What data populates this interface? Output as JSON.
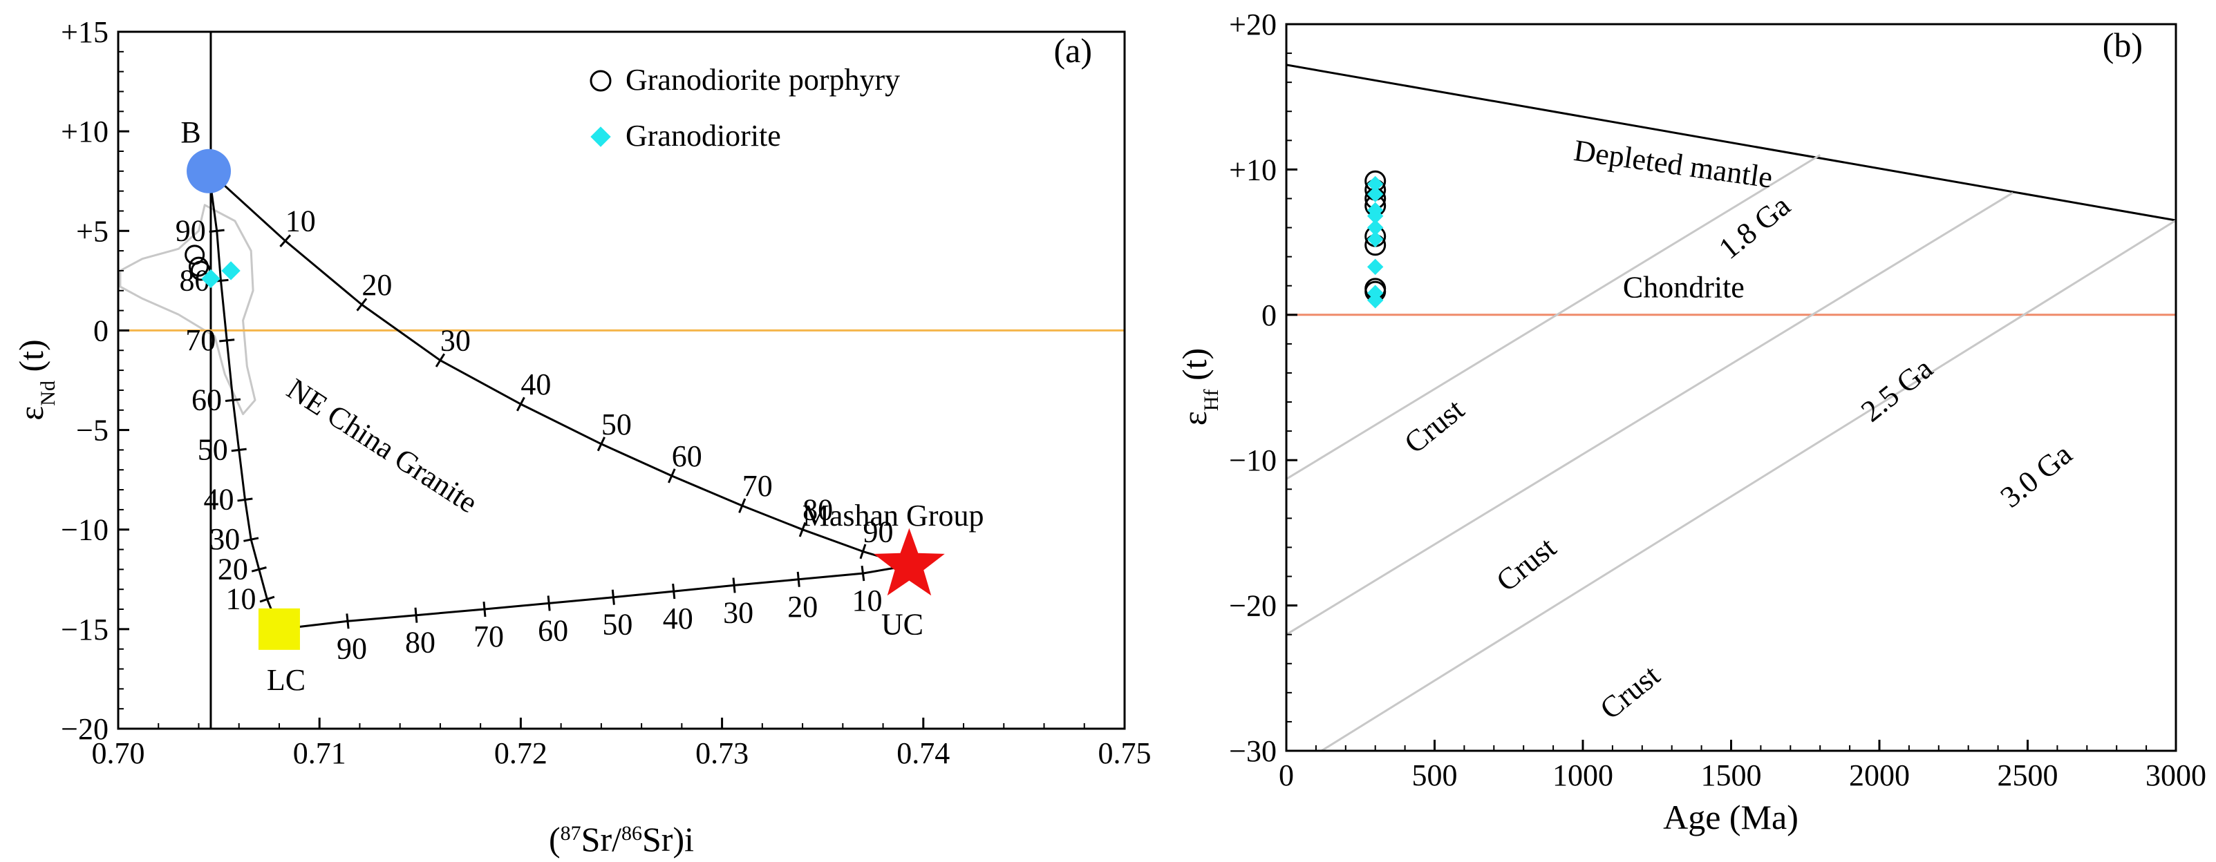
{
  "figure": {
    "panels": [
      "(a)",
      "(b)"
    ]
  },
  "colors": {
    "blue": "#5b8ff0",
    "cyan": "#21e7ee",
    "red": "#ee1111",
    "yellow": "#f4f400",
    "orange_line": "#f5b54a",
    "chondrite_line": "#ef8a6a",
    "grey": "#c8c8c8"
  },
  "chart_data": [
    {
      "type": "scatter",
      "panel": "(a)",
      "xlabel_parts": [
        "(",
        "87",
        "Sr/",
        "86",
        "Sr)i"
      ],
      "ylabel_parts": [
        "ε",
        "Nd",
        " (t)"
      ],
      "xlim": [
        0.7,
        0.75
      ],
      "ylim": [
        -20,
        15
      ],
      "xticks": [
        0.7,
        0.71,
        0.72,
        0.73,
        0.74,
        0.75
      ],
      "xtick_labels": [
        "0.70",
        "0.71",
        "0.72",
        "0.73",
        "0.74",
        "0.75"
      ],
      "yticks": [
        15,
        10,
        5,
        0,
        -5,
        -10,
        -15,
        -20
      ],
      "ytick_labels": [
        "+15",
        "+10",
        "+5",
        "0",
        "−5",
        "−10",
        "−15",
        "−20"
      ],
      "legend": {
        "position": "top-right",
        "entries": [
          {
            "marker": "circle-open",
            "label": "Granodiorite porphyry"
          },
          {
            "marker": "diamond-cyan",
            "label": "Granodiorite"
          }
        ]
      },
      "series": [
        {
          "name": "Granodiorite porphyry",
          "marker": "circle-open",
          "points": [
            [
              0.7038,
              3.8
            ],
            [
              0.704,
              3.2
            ],
            [
              0.7041,
              3.0
            ]
          ]
        },
        {
          "name": "Granodiorite",
          "marker": "diamond-cyan",
          "points": [
            [
              0.7046,
              2.6
            ],
            [
              0.7056,
              3.0
            ]
          ]
        }
      ],
      "endmembers": [
        {
          "name": "B",
          "label": "B",
          "x": 0.7045,
          "y": 8.0,
          "marker": "circle-blue"
        },
        {
          "name": "LC",
          "label": "LC",
          "x": 0.708,
          "y": -15.0,
          "marker": "square-yellow"
        },
        {
          "name": "UC",
          "label": "UC",
          "x": 0.7393,
          "y": -11.8,
          "marker": "star-red"
        }
      ],
      "reference_lines": [
        {
          "name": "vertical-line",
          "x": 0.7046
        },
        {
          "name": "zero-line",
          "y": 0
        }
      ],
      "mixing_curves": [
        {
          "name": "B-UC",
          "ticks": [
            {
              "x": 0.7083,
              "y": 4.5,
              "label": "10"
            },
            {
              "x": 0.7121,
              "y": 1.3,
              "label": "20"
            },
            {
              "x": 0.716,
              "y": -1.5,
              "label": "30"
            },
            {
              "x": 0.72,
              "y": -3.7,
              "label": "40"
            },
            {
              "x": 0.724,
              "y": -5.7,
              "label": "50"
            },
            {
              "x": 0.7275,
              "y": -7.3,
              "label": "60"
            },
            {
              "x": 0.731,
              "y": -8.8,
              "label": "70"
            },
            {
              "x": 0.734,
              "y": -10.0,
              "label": "80"
            },
            {
              "x": 0.737,
              "y": -11.1,
              "label": "90"
            }
          ]
        },
        {
          "name": "B-LC",
          "ticks": [
            {
              "x": 0.7049,
              "y": 5.0,
              "label": "90"
            },
            {
              "x": 0.7051,
              "y": 2.5,
              "label": "80"
            },
            {
              "x": 0.7054,
              "y": -0.5,
              "label": "70"
            },
            {
              "x": 0.7057,
              "y": -3.5,
              "label": "60"
            },
            {
              "x": 0.706,
              "y": -6.0,
              "label": "50"
            },
            {
              "x": 0.7063,
              "y": -8.5,
              "label": "40"
            },
            {
              "x": 0.7066,
              "y": -10.5,
              "label": "30"
            },
            {
              "x": 0.707,
              "y": -12.0,
              "label": "20"
            },
            {
              "x": 0.7074,
              "y": -13.5,
              "label": "10"
            }
          ]
        },
        {
          "name": "LC-UC",
          "ticks": [
            {
              "x": 0.7114,
              "y": -14.6,
              "label": "90"
            },
            {
              "x": 0.7148,
              "y": -14.3,
              "label": "80"
            },
            {
              "x": 0.7182,
              "y": -14.0,
              "label": "70"
            },
            {
              "x": 0.7214,
              "y": -13.7,
              "label": "60"
            },
            {
              "x": 0.7246,
              "y": -13.4,
              "label": "50"
            },
            {
              "x": 0.7276,
              "y": -13.1,
              "label": "40"
            },
            {
              "x": 0.7306,
              "y": -12.8,
              "label": "30"
            },
            {
              "x": 0.7338,
              "y": -12.5,
              "label": "20"
            },
            {
              "x": 0.737,
              "y": -12.2,
              "label": "10"
            }
          ]
        }
      ],
      "field": {
        "name": "NE China Granite",
        "label": "NE China Granite",
        "outline": [
          [
            0.7043,
            6.3
          ],
          [
            0.7058,
            5.5
          ],
          [
            0.7066,
            4.0
          ],
          [
            0.7067,
            2.0
          ],
          [
            0.7062,
            0.5
          ],
          [
            0.7064,
            -1.8
          ],
          [
            0.7068,
            -3.5
          ],
          [
            0.7062,
            -4.2
          ],
          [
            0.7053,
            -2.2
          ],
          [
            0.7048,
            -0.3
          ],
          [
            0.703,
            0.8
          ],
          [
            0.7012,
            1.6
          ],
          [
            0.7001,
            2.2
          ],
          [
            0.7001,
            3.0
          ],
          [
            0.7012,
            3.6
          ],
          [
            0.703,
            4.1
          ],
          [
            0.704,
            5.0
          ]
        ]
      },
      "annotations": [
        {
          "name": "mashan-group",
          "text": "Mashan Group",
          "x": 0.7385,
          "y": -9.8
        }
      ]
    },
    {
      "type": "scatter",
      "panel": "(b)",
      "xlabel": "Age (Ma)",
      "ylabel_parts": [
        "ε",
        "Hf",
        " (t)"
      ],
      "xlim": [
        0,
        3000
      ],
      "ylim": [
        -30,
        20
      ],
      "xticks": [
        0,
        500,
        1000,
        1500,
        2000,
        2500,
        3000
      ],
      "xtick_labels": [
        "0",
        "500",
        "1000",
        "1500",
        "2000",
        "2500",
        "3000"
      ],
      "yticks": [
        20,
        10,
        0,
        -10,
        -20,
        -30
      ],
      "ytick_labels": [
        "+20",
        "+10",
        "0",
        "−10",
        "−20",
        "−30"
      ],
      "reference_lines": [
        {
          "name": "depleted-mantle",
          "label": "Depleted mantle",
          "from": [
            0,
            17.2
          ],
          "to": [
            3000,
            6.5
          ]
        },
        {
          "name": "chondrite",
          "label": "Chondrite",
          "from": [
            0,
            0
          ],
          "to": [
            3000,
            0
          ]
        }
      ],
      "crust_lines": [
        {
          "name": "crust-1.8ga",
          "age_label": "1.8 Ga",
          "crust_label": "Crust",
          "from": [
            0,
            -11.3
          ],
          "to": [
            1800,
            11
          ]
        },
        {
          "name": "crust-2.5ga",
          "age_label": "2.5 Ga",
          "crust_label": "Crust",
          "from": [
            0,
            -22
          ],
          "to": [
            2450,
            8.4
          ]
        },
        {
          "name": "crust-3.0ga",
          "age_label": "3.0 Ga",
          "crust_label": "Crust",
          "from": [
            0,
            -31.5
          ],
          "to": [
            3000,
            6.5
          ]
        }
      ],
      "series": [
        {
          "name": "Granodiorite porphyry",
          "marker": "circle-open",
          "points": [
            [
              300,
              9.2
            ],
            [
              300,
              8.6
            ],
            [
              300,
              8.0
            ],
            [
              300,
              7.5
            ],
            [
              300,
              5.4
            ],
            [
              300,
              4.8
            ],
            [
              300,
              1.8
            ],
            [
              300,
              1.6
            ]
          ]
        },
        {
          "name": "Granodiorite",
          "marker": "diamond-cyan",
          "points": [
            [
              300,
              9.0
            ],
            [
              300,
              8.3
            ],
            [
              300,
              7.2
            ],
            [
              300,
              6.8
            ],
            [
              300,
              6.0
            ],
            [
              300,
              5.2
            ],
            [
              300,
              3.3
            ],
            [
              300,
              1.5
            ],
            [
              300,
              1.0
            ]
          ]
        }
      ]
    }
  ]
}
